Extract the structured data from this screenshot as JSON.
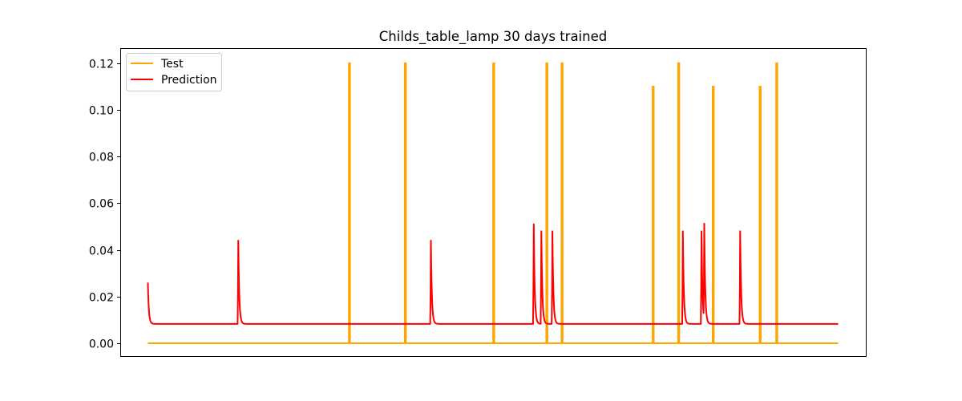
{
  "chart_data": {
    "type": "line",
    "title": "Childs_table_lamp 30 days trained",
    "xlabel": "",
    "ylabel": "",
    "xlim": [
      -40,
      1040
    ],
    "ylim": [
      -0.0055,
      0.1265
    ],
    "x_tick_labels_visible": false,
    "yticks": [
      0.0,
      0.02,
      0.04,
      0.06,
      0.08,
      0.1,
      0.12
    ],
    "ytick_labels": [
      "0.00",
      "0.02",
      "0.04",
      "0.06",
      "0.08",
      "0.10",
      "0.12"
    ],
    "legend": {
      "position": "top-left",
      "entries": [
        "Test",
        "Prediction"
      ]
    },
    "series": [
      {
        "name": "Test",
        "color": "#ffa500",
        "baseline": 0.0,
        "x_range": [
          0,
          1000
        ],
        "spikes": [
          {
            "x": 292,
            "y": 0.12
          },
          {
            "x": 373,
            "y": 0.12
          },
          {
            "x": 501,
            "y": 0.12
          },
          {
            "x": 578,
            "y": 0.12
          },
          {
            "x": 600,
            "y": 0.12
          },
          {
            "x": 732,
            "y": 0.11
          },
          {
            "x": 769,
            "y": 0.12
          },
          {
            "x": 819,
            "y": 0.11
          },
          {
            "x": 887,
            "y": 0.11
          },
          {
            "x": 911,
            "y": 0.12
          }
        ]
      },
      {
        "name": "Prediction",
        "color": "#ff0000",
        "baseline": 0.0083,
        "x_range": [
          0,
          1000
        ],
        "start_value": 0.026,
        "spikes": [
          {
            "x": 131,
            "y": 0.044
          },
          {
            "x": 410,
            "y": 0.044
          },
          {
            "x": 559,
            "y": 0.051
          },
          {
            "x": 570,
            "y": 0.048
          },
          {
            "x": 586,
            "y": 0.048
          },
          {
            "x": 775,
            "y": 0.048
          },
          {
            "x": 802,
            "y": 0.048
          },
          {
            "x": 806,
            "y": 0.049
          },
          {
            "x": 858,
            "y": 0.048
          }
        ]
      }
    ]
  }
}
